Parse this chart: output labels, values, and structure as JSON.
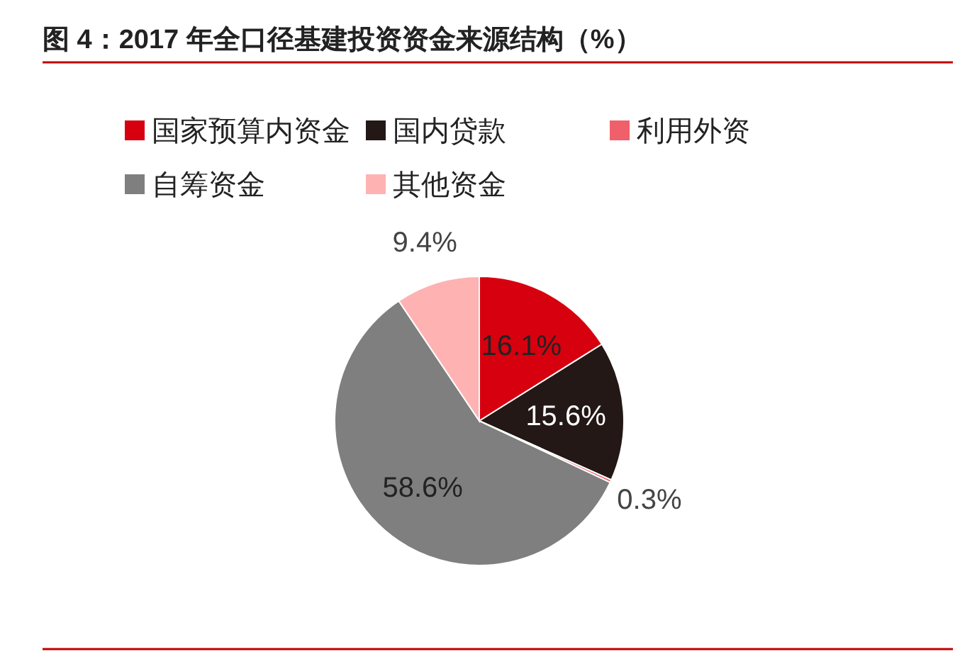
{
  "chart_data": {
    "type": "pie",
    "title": "图 4：2017 年全口径基建投资资金来源结构（%）",
    "categories": [
      "国家预算内资金",
      "国内贷款",
      "利用外资",
      "自筹资金",
      "其他资金"
    ],
    "values": [
      16.1,
      15.6,
      0.3,
      58.6,
      9.4
    ],
    "value_labels": [
      "16.1%",
      "15.6%",
      "0.3%",
      "58.6%",
      "9.4%"
    ],
    "colors": [
      "#d7000f",
      "#231815",
      "#f0606a",
      "#7f7f7f",
      "#ffb2b2"
    ],
    "legend": "top"
  }
}
